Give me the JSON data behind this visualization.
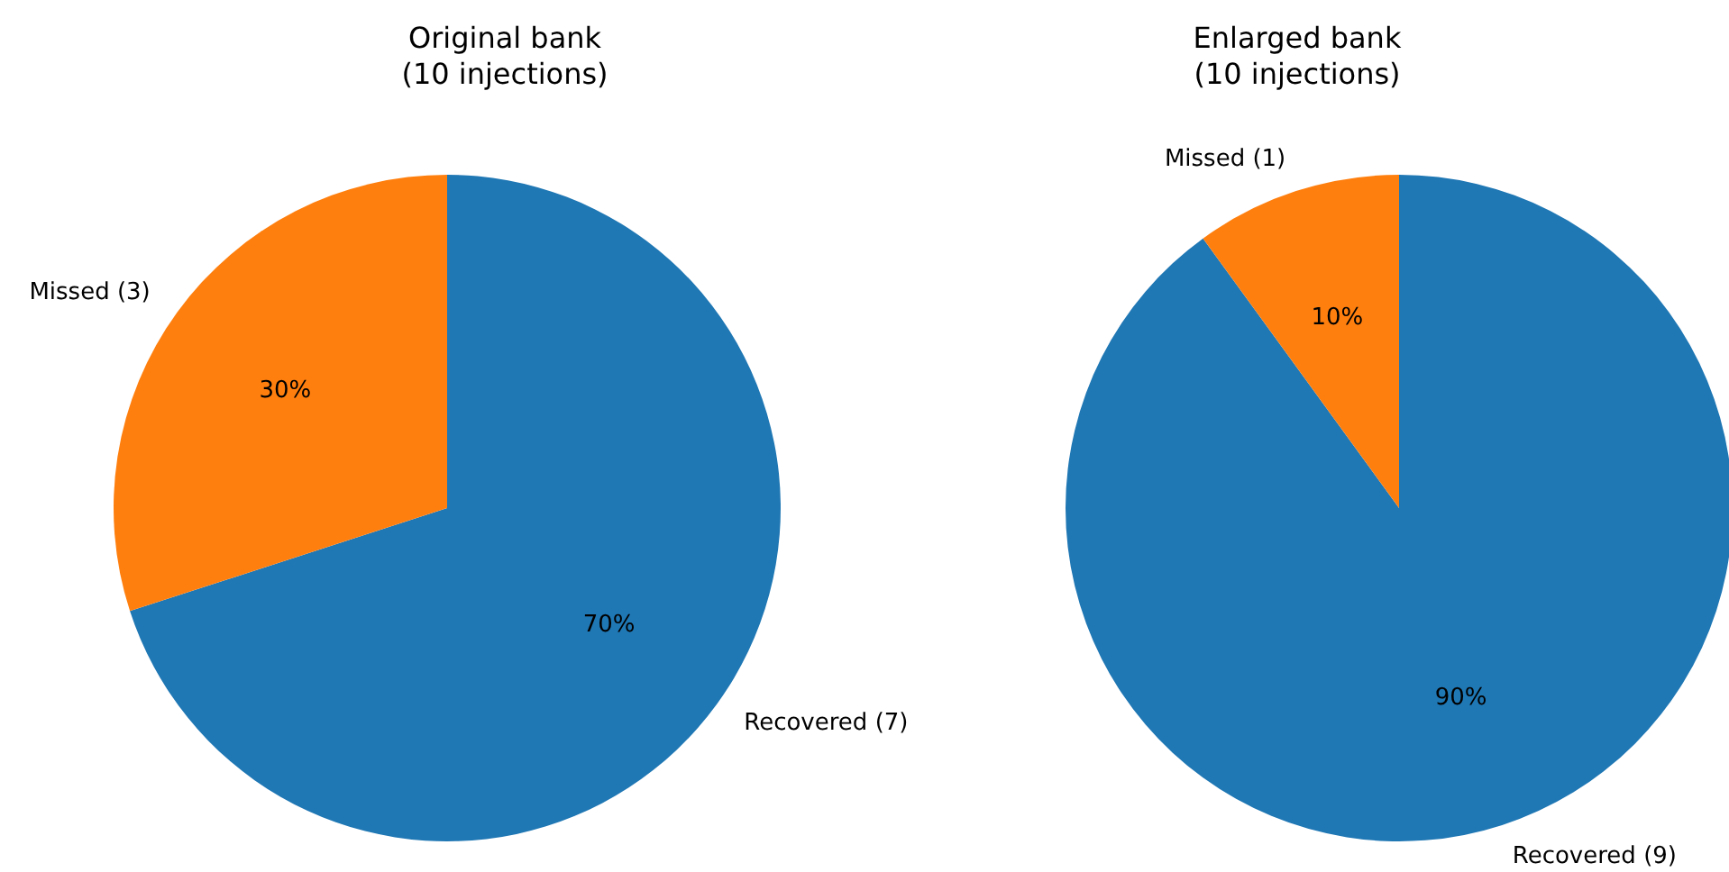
{
  "chart_data": [
    {
      "type": "pie",
      "title": "Original bank\n(10 injections)",
      "categories": [
        "Recovered (7)",
        "Missed (3)"
      ],
      "values": [
        70,
        30
      ],
      "colors": [
        "#1f77b4",
        "#ff7f0e"
      ],
      "value_labels": [
        "70%",
        "30%"
      ]
    },
    {
      "type": "pie",
      "title": "Enlarged bank\n(10 injections)",
      "categories": [
        "Recovered (9)",
        "Missed (1)"
      ],
      "values": [
        90,
        10
      ],
      "colors": [
        "#1f77b4",
        "#ff7f0e"
      ],
      "value_labels": [
        "90%",
        "10%"
      ]
    }
  ]
}
